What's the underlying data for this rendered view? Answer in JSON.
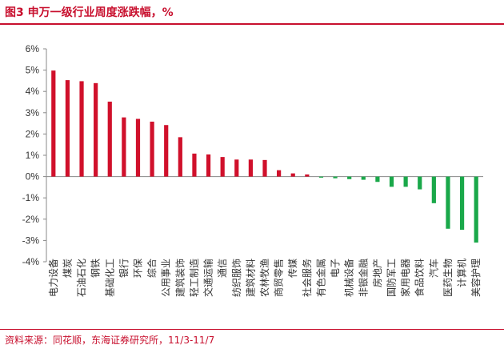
{
  "header": {
    "title": "图3  申万一级行业周度涨跌幅，%"
  },
  "footer": {
    "source": "资料来源：同花顺，东海证券研究所，11/3-11/7"
  },
  "colors": {
    "positive": "#d0102b",
    "negative": "#1aa84a",
    "accent": "#c8102e",
    "axis": "#888888"
  },
  "chart_data": {
    "type": "bar",
    "categories": [
      "电力设备",
      "煤炭",
      "石油石化",
      "钢铁",
      "基础化工",
      "银行",
      "环保",
      "综合",
      "公用事业",
      "建筑装饰",
      "轻工制造",
      "交通运输",
      "通信",
      "纺织服饰",
      "建筑材料",
      "农林牧渔",
      "商贸零售",
      "传媒",
      "社会服务",
      "有色金属",
      "电子",
      "机械设备",
      "非银金融",
      "房地产",
      "国防军工",
      "家用电器",
      "食品饮料",
      "汽车",
      "医药生物",
      "计算机",
      "美容护理"
    ],
    "values": [
      4.98,
      4.53,
      4.48,
      4.39,
      3.52,
      2.78,
      2.71,
      2.58,
      2.42,
      1.85,
      1.08,
      1.04,
      0.92,
      0.8,
      0.8,
      0.78,
      0.3,
      0.15,
      0.1,
      -0.05,
      -0.08,
      -0.12,
      -0.15,
      -0.25,
      -0.48,
      -0.48,
      -0.6,
      -1.25,
      -2.45,
      -2.5,
      -3.1
    ],
    "ylim": [
      -4,
      6
    ],
    "yticks": [
      -4,
      -3,
      -2,
      -1,
      0,
      1,
      2,
      3,
      4,
      5,
      6
    ],
    "ytick_labels": [
      "-4%",
      "-3%",
      "-2%",
      "-1%",
      "0%",
      "1%",
      "2%",
      "3%",
      "4%",
      "5%",
      "6%"
    ],
    "title": "申万一级行业周度涨跌幅，%",
    "xlabel": "",
    "ylabel": "",
    "grid": false,
    "legend": "none"
  }
}
